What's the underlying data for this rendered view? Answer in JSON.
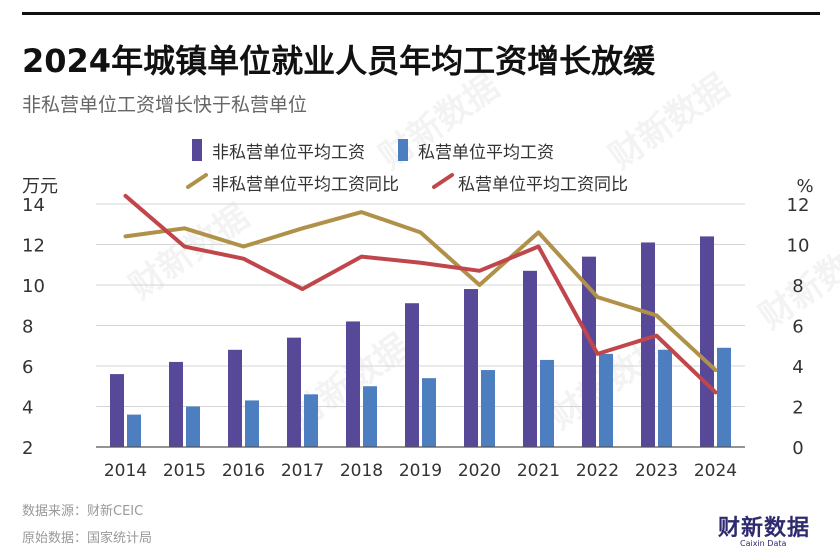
{
  "title": "2024年城镇单位就业人员年均工资增长放缓",
  "subtitle": "非私营单位工资增长快于私营单位",
  "source_line1": "数据来源：财新CEIC",
  "source_line2": "原始数据：国家统计局",
  "logo_text": "财新数据",
  "logo_sub": "Caixin Data",
  "watermark_text": "财新数据",
  "colors": {
    "nonprivate_bar": "#574898",
    "private_bar": "#4c7ec0",
    "nonprivate_line": "#b0914a",
    "private_line": "#c0464b"
  },
  "chart_data": {
    "type": "bar+line",
    "categories": [
      "2014",
      "2015",
      "2016",
      "2017",
      "2018",
      "2019",
      "2020",
      "2021",
      "2022",
      "2023",
      "2024"
    ],
    "left_axis": {
      "unit": "万元",
      "ticks": [
        "14",
        "12",
        "10",
        "8",
        "6",
        "4",
        "2"
      ],
      "range": [
        2,
        14
      ]
    },
    "right_axis": {
      "unit": "%",
      "ticks": [
        "12",
        "10",
        "8",
        "6",
        "4",
        "2",
        "0"
      ],
      "range": [
        0,
        12
      ]
    },
    "bar_series": [
      {
        "name": "非私营单位平均工资",
        "values": [
          5.6,
          6.2,
          6.8,
          7.4,
          8.2,
          9.1,
          9.8,
          10.7,
          11.4,
          12.1,
          12.4
        ]
      },
      {
        "name": "私营单位平均工资",
        "values": [
          3.6,
          4.0,
          4.3,
          4.6,
          5.0,
          5.4,
          5.8,
          6.3,
          6.6,
          6.8,
          6.9
        ]
      }
    ],
    "line_series": [
      {
        "name": "非私营单位平均工资同比",
        "values": [
          10.4,
          10.8,
          9.9,
          10.8,
          11.6,
          10.6,
          8.0,
          10.6,
          7.4,
          6.5,
          3.8
        ]
      },
      {
        "name": "私营单位平均工资同比",
        "values": [
          12.4,
          9.9,
          9.3,
          7.8,
          9.4,
          9.1,
          8.7,
          9.9,
          4.6,
          5.5,
          2.7
        ]
      }
    ],
    "grid": "horizontal",
    "legend": "top"
  }
}
